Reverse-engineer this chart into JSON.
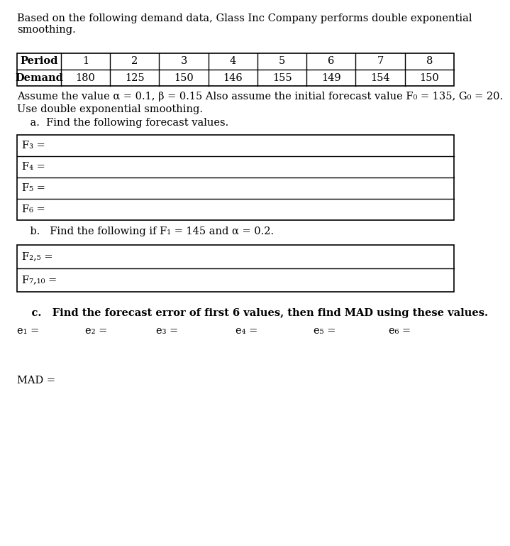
{
  "title_line1": "Based on the following demand data, Glass Inc Company performs double exponential",
  "title_line2": "smoothing.",
  "table_headers": [
    "Period",
    "1",
    "2",
    "3",
    "4",
    "5",
    "6",
    "7",
    "8"
  ],
  "table_demand": [
    "Demand",
    "180",
    "125",
    "150",
    "146",
    "155",
    "149",
    "154",
    "150"
  ],
  "param_text": "Assume the value α = 0.1, β = 0.15 Also assume the initial forecast value F₀ = 135, G₀ = 20.",
  "use_text": "Use double exponential smoothing.",
  "part_a_indent": "    a.",
  "part_a_text": "  Find the following forecast values.",
  "part_a_rows": [
    "F₃ =",
    "F₄ =",
    "F₅ =",
    "F₆ ="
  ],
  "part_b_indent": "    b.",
  "part_b_text": "   Find the following if F₁ = 145 and α = 0.2.",
  "part_b_rows": [
    "F₂,₅ =",
    "F₇,₁₀ ="
  ],
  "part_c_indent": "    c.",
  "part_c_text": "   Find the forecast error of first 6 values, then find MAD using these values.",
  "error_labels": [
    "e₁ =",
    "e₂ =",
    "e₃ =",
    "e₄ =",
    "e₅ =",
    "e₆ ="
  ],
  "mad_label": "MAD =",
  "bg_color": "#ffffff",
  "text_color": "#000000",
  "box_color": "#000000",
  "font_size": 10.5
}
